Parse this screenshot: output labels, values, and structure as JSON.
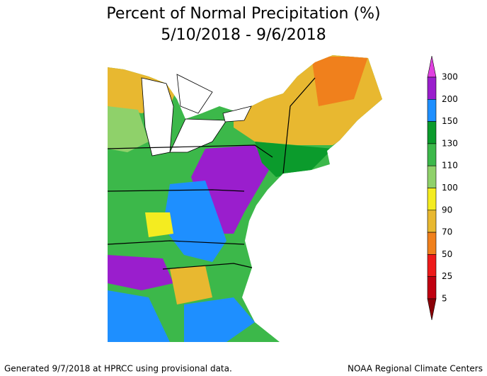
{
  "title": "Percent of Normal Precipitation (%)",
  "subtitle": "5/10/2018 - 9/6/2018",
  "legend": {
    "levels": [
      300,
      200,
      150,
      130,
      110,
      100,
      90,
      70,
      50,
      25,
      5
    ],
    "colors": [
      "#9a1ecd",
      "#1e8fff",
      "#0b9b2c",
      "#3cb84a",
      "#8fd16a",
      "#f4ec20",
      "#e8b830",
      "#f0801c",
      "#ee1a1a",
      "#c00010"
    ],
    "top_color": "#e040e0",
    "bottom_color": "#8a0008"
  },
  "footer": {
    "left": "Generated 9/7/2018 at HPRCC using provisional data.",
    "right": "NOAA Regional Climate Centers"
  }
}
